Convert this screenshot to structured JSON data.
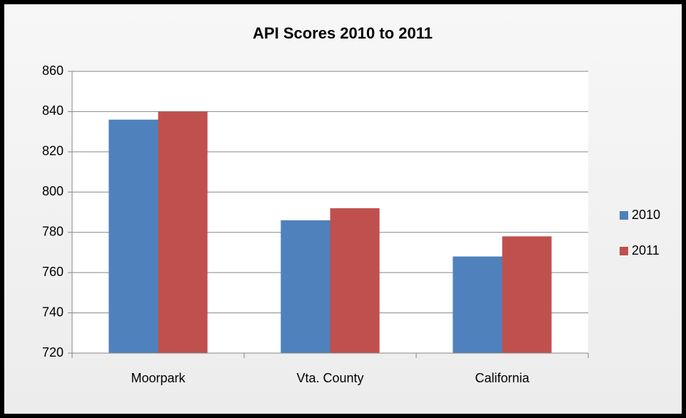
{
  "chart_data": {
    "type": "bar",
    "title": "API Scores 2010 to 2011",
    "categories": [
      "Moorpark",
      "Vta. County",
      "California"
    ],
    "series": [
      {
        "name": "2010",
        "color": "#4f81bd",
        "values": [
          836,
          786,
          768
        ]
      },
      {
        "name": "2011",
        "color": "#c0504d",
        "values": [
          840,
          792,
          778
        ]
      }
    ],
    "ylim": [
      720,
      860
    ],
    "yticks": [
      720,
      740,
      760,
      780,
      800,
      820,
      840,
      860
    ],
    "grid": true,
    "legend": "right"
  }
}
